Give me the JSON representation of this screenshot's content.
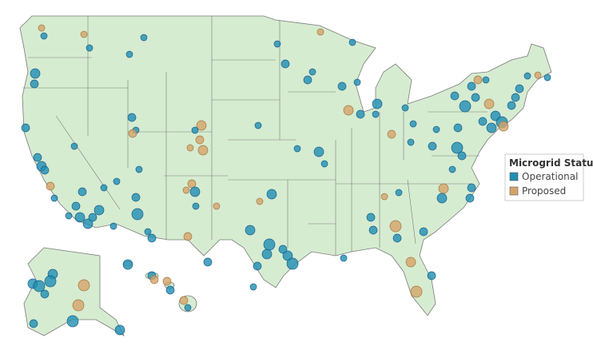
{
  "legend": {
    "title": "Microgrid Status",
    "items": [
      {
        "label": "Operational",
        "color": "#1f8fb3"
      },
      {
        "label": "Proposed",
        "color": "#d6a46a"
      }
    ]
  }
}
